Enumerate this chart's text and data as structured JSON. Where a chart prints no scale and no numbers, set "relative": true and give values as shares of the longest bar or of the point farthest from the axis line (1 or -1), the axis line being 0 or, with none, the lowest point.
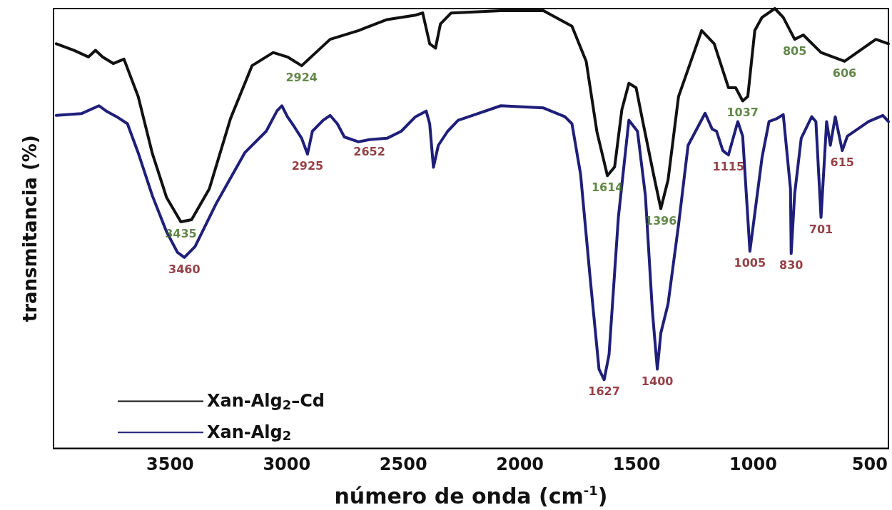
{
  "chart_data": {
    "type": "line",
    "relative": true,
    "xlabel": "número de onda (cm$^{-1}$)",
    "ylabel": "transmitancia (%)",
    "xlim": [
      4000,
      420
    ],
    "xticks": [
      3500,
      3000,
      2500,
      2000,
      1500,
      1000,
      500
    ],
    "grid": false,
    "legend": "bottom left",
    "marker": "none",
    "line_style": "solid",
    "series": [
      {
        "name": "Xan-Alg$_{2}$–Cd",
        "color": "#111111",
        "x": [
          3988,
          3912,
          3850,
          3820,
          3790,
          3744,
          3698,
          3637,
          3576,
          3515,
          3454,
          3408,
          3332,
          3241,
          3149,
          3058,
          2997,
          2936,
          2875,
          2814,
          2692,
          2570,
          2448,
          2417,
          2387,
          2362,
          2341,
          2295,
          2082,
          1899,
          1777,
          1716,
          1670,
          1625,
          1594,
          1563,
          1533,
          1502,
          1472,
          1426,
          1396,
          1365,
          1320,
          1221,
          1167,
          1106,
          1075,
          1045,
          1023,
          993,
          962,
          907,
          871,
          822,
          785,
          709,
          608,
          474,
          420
        ],
        "values": [
          0.92,
          0.905,
          0.89,
          0.905,
          0.89,
          0.875,
          0.885,
          0.8,
          0.67,
          0.57,
          0.515,
          0.52,
          0.59,
          0.75,
          0.87,
          0.9,
          0.89,
          0.87,
          0.9,
          0.93,
          0.95,
          0.975,
          0.985,
          0.99,
          0.92,
          0.91,
          0.965,
          0.99,
          0.995,
          0.995,
          0.96,
          0.88,
          0.72,
          0.62,
          0.64,
          0.77,
          0.83,
          0.82,
          0.74,
          0.62,
          0.545,
          0.61,
          0.8,
          0.95,
          0.92,
          0.82,
          0.82,
          0.79,
          0.8,
          0.95,
          0.98,
          1,
          0.98,
          0.93,
          0.94,
          0.9,
          0.88,
          0.93,
          0.92
        ]
      },
      {
        "name": "Xan-Alg$_{2}$",
        "color": "#1f1f7a",
        "x": [
          3988,
          3881,
          3805,
          3774,
          3729,
          3683,
          3637,
          3576,
          3515,
          3469,
          3439,
          3393,
          3302,
          3180,
          3088,
          3042,
          3021,
          2997,
          2966,
          2936,
          2911,
          2890,
          2844,
          2814,
          2783,
          2753,
          2692,
          2646,
          2570,
          2509,
          2448,
          2402,
          2387,
          2371,
          2350,
          2310,
          2265,
          2204,
          2082,
          1899,
          1807,
          1777,
          1740,
          1700,
          1661,
          1639,
          1618,
          1578,
          1533,
          1496,
          1462,
          1432,
          1411,
          1396,
          1365,
          1320,
          1279,
          1206,
          1176,
          1157,
          1130,
          1106,
          1066,
          1045,
          1014,
          962,
          932,
          901,
          871,
          840,
          837,
          822,
          794,
          749,
          731,
          709,
          685,
          669,
          648,
          618,
          596,
          505,
          444,
          420
        ],
        "values": [
          0.757,
          0.761,
          0.779,
          0.767,
          0.754,
          0.738,
          0.672,
          0.574,
          0.492,
          0.446,
          0.434,
          0.459,
          0.557,
          0.672,
          0.721,
          0.767,
          0.779,
          0.754,
          0.73,
          0.705,
          0.669,
          0.721,
          0.746,
          0.757,
          0.738,
          0.708,
          0.697,
          0.702,
          0.705,
          0.721,
          0.754,
          0.767,
          0.738,
          0.639,
          0.689,
          0.721,
          0.746,
          0.757,
          0.779,
          0.774,
          0.754,
          0.738,
          0.623,
          0.393,
          0.18,
          0.156,
          0.213,
          0.525,
          0.746,
          0.721,
          0.574,
          0.311,
          0.18,
          0.262,
          0.328,
          0.508,
          0.689,
          0.762,
          0.726,
          0.721,
          0.677,
          0.667,
          0.743,
          0.71,
          0.448,
          0.661,
          0.743,
          0.749,
          0.759,
          0.59,
          0.443,
          0.579,
          0.705,
          0.754,
          0.743,
          0.525,
          0.743,
          0.689,
          0.754,
          0.677,
          0.71,
          0.743,
          0.757,
          0.743
        ]
      }
    ],
    "annotations": [
      {
        "text": "2924",
        "x": 2936,
        "y": 0.87
      },
      {
        "text": "3435",
        "x": 3454,
        "y": 0.515
      },
      {
        "text": "1614",
        "x": 1625,
        "y": 0.62
      },
      {
        "text": "1396",
        "x": 1396,
        "y": 0.545
      },
      {
        "text": "1037",
        "x": 1045,
        "y": 0.79
      },
      {
        "text": "805",
        "x": 822,
        "y": 0.93
      },
      {
        "text": "606",
        "x": 608,
        "y": 0.88
      },
      {
        "text": "3460",
        "x": 3439,
        "y": 0.434
      },
      {
        "text": "2925",
        "x": 2911,
        "y": 0.669
      },
      {
        "text": "2652",
        "x": 2646,
        "y": 0.702
      },
      {
        "text": "1627",
        "x": 1639,
        "y": 0.156
      },
      {
        "text": "1400",
        "x": 1411,
        "y": 0.18
      },
      {
        "text": "1115",
        "x": 1106,
        "y": 0.667
      },
      {
        "text": "1005",
        "x": 1014,
        "y": 0.448
      },
      {
        "text": "830",
        "x": 837,
        "y": 0.443
      },
      {
        "text": "701",
        "x": 709,
        "y": 0.525
      },
      {
        "text": "615",
        "x": 618,
        "y": 0.677
      }
    ]
  }
}
